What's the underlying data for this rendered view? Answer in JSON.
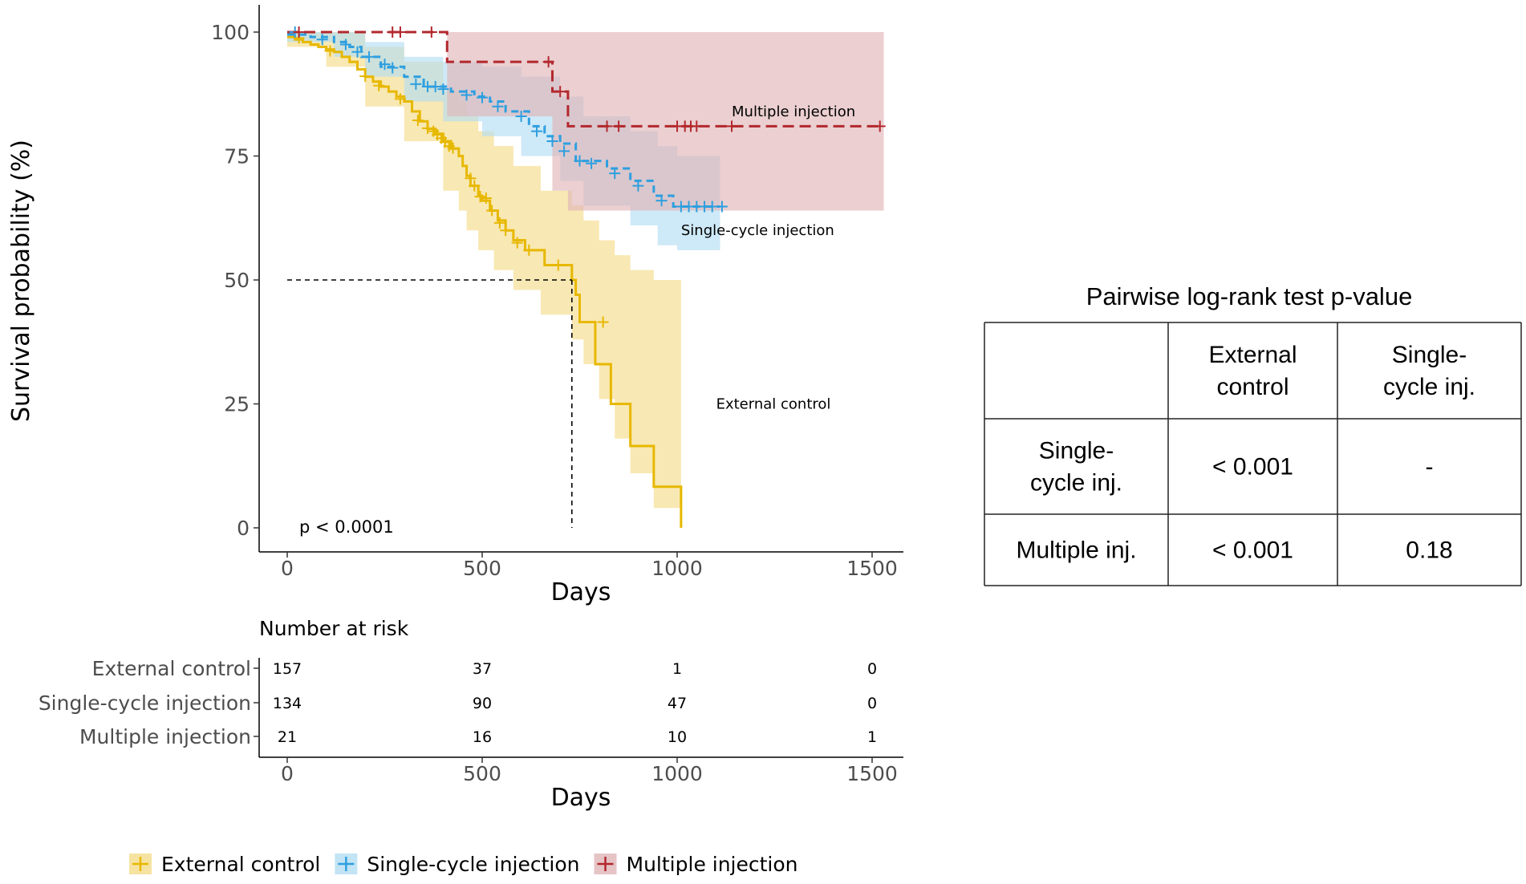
{
  "chart_data": [
    {
      "type": "line",
      "subtype": "kaplan-meier",
      "title": "",
      "xlabel": "Days",
      "ylabel": "Survival probability (%)",
      "xlim": [
        0,
        1500
      ],
      "ylim": [
        0,
        100
      ],
      "xticks": [
        0,
        500,
        1000,
        1500
      ],
      "yticks": [
        0,
        25,
        50,
        75,
        100
      ],
      "pvalue_text": "p < 0.0001",
      "median_line": {
        "x": 730,
        "y": 50
      },
      "series": [
        {
          "name": "External control",
          "color": "#E7B800",
          "band_color": "#F4DC8A",
          "label": "External control",
          "label_pos": [
            1100,
            25
          ],
          "steps": [
            [
              0,
              99
            ],
            [
              20,
              98.5
            ],
            [
              40,
              98
            ],
            [
              60,
              97.5
            ],
            [
              80,
              97
            ],
            [
              100,
              96.5
            ],
            [
              120,
              96
            ],
            [
              140,
              95
            ],
            [
              160,
              94
            ],
            [
              180,
              92.5
            ],
            [
              200,
              91
            ],
            [
              220,
              90
            ],
            [
              240,
              89
            ],
            [
              260,
              88
            ],
            [
              280,
              87
            ],
            [
              300,
              86
            ],
            [
              320,
              84
            ],
            [
              340,
              82
            ],
            [
              360,
              80.5
            ],
            [
              380,
              79.5
            ],
            [
              400,
              78
            ],
            [
              420,
              76.5
            ],
            [
              440,
              75
            ],
            [
              450,
              73
            ],
            [
              460,
              71
            ],
            [
              470,
              69
            ],
            [
              490,
              67
            ],
            [
              500,
              66
            ],
            [
              520,
              64
            ],
            [
              540,
              62
            ],
            [
              560,
              60
            ],
            [
              580,
              58
            ],
            [
              610,
              56
            ],
            [
              660,
              53
            ],
            [
              730,
              50
            ],
            [
              740,
              47
            ],
            [
              750,
              41.5
            ],
            [
              790,
              33
            ],
            [
              830,
              25
            ],
            [
              880,
              16.5
            ],
            [
              940,
              8.3
            ],
            [
              1010,
              0
            ]
          ],
          "band": [
            [
              0,
              100,
              97
            ],
            [
              100,
              100,
              93
            ],
            [
              200,
              97,
              85
            ],
            [
              300,
              94,
              78
            ],
            [
              400,
              88,
              68
            ],
            [
              440,
              86,
              64
            ],
            [
              460,
              83,
              60
            ],
            [
              490,
              80,
              56
            ],
            [
              530,
              77,
              52
            ],
            [
              580,
              73,
              48
            ],
            [
              650,
              68,
              43
            ],
            [
              730,
              65,
              38
            ],
            [
              760,
              62,
              33
            ],
            [
              800,
              58,
              26
            ],
            [
              840,
              55,
              18
            ],
            [
              880,
              52,
              11
            ],
            [
              940,
              50,
              4
            ],
            [
              1010,
              50,
              0
            ]
          ],
          "censor": [
            [
              30,
              98.8
            ],
            [
              110,
              96.2
            ],
            [
              200,
              91.1
            ],
            [
              235,
              89.2
            ],
            [
              290,
              86.5
            ],
            [
              335,
              82.2
            ],
            [
              360,
              80.6
            ],
            [
              375,
              80
            ],
            [
              385,
              79.3
            ],
            [
              395,
              78.6
            ],
            [
              405,
              77.8
            ],
            [
              415,
              77
            ],
            [
              425,
              76.6
            ],
            [
              470,
              70.5
            ],
            [
              480,
              69
            ],
            [
              495,
              66.8
            ],
            [
              510,
              66.5
            ],
            [
              525,
              64
            ],
            [
              545,
              61.5
            ],
            [
              560,
              60
            ],
            [
              590,
              57.5
            ],
            [
              620,
              56
            ],
            [
              695,
              53
            ],
            [
              810,
              41.5
            ]
          ]
        },
        {
          "name": "Single-cycle injection",
          "color": "#2E9FDF",
          "band_color": "#B3DDF3",
          "label": "Single-cycle injection",
          "label_pos": [
            1010,
            60
          ],
          "steps": [
            [
              0,
              99.5
            ],
            [
              60,
              99
            ],
            [
              120,
              98
            ],
            [
              160,
              97
            ],
            [
              190,
              95
            ],
            [
              240,
              93
            ],
            [
              300,
              91
            ],
            [
              350,
              89
            ],
            [
              420,
              88
            ],
            [
              480,
              87
            ],
            [
              520,
              86
            ],
            [
              560,
              84
            ],
            [
              620,
              81
            ],
            [
              660,
              79
            ],
            [
              700,
              77.5
            ],
            [
              740,
              74
            ],
            [
              820,
              72.5
            ],
            [
              880,
              70
            ],
            [
              940,
              67
            ],
            [
              990,
              64.8
            ],
            [
              1110,
              64.8
            ]
          ],
          "band": [
            [
              0,
              100,
              98
            ],
            [
              120,
              100,
              95
            ],
            [
              200,
              98,
              91
            ],
            [
              300,
              95,
              86
            ],
            [
              400,
              94,
              82
            ],
            [
              500,
              93,
              79
            ],
            [
              600,
              91,
              75
            ],
            [
              700,
              87,
              70
            ],
            [
              760,
              83,
              65
            ],
            [
              880,
              80,
              61
            ],
            [
              950,
              77,
              57
            ],
            [
              1000,
              75,
              56
            ],
            [
              1110,
              75,
              56
            ]
          ],
          "censor": [
            [
              20,
              100
            ],
            [
              90,
              98.5
            ],
            [
              150,
              97.5
            ],
            [
              180,
              96
            ],
            [
              210,
              95
            ],
            [
              250,
              93.5
            ],
            [
              270,
              92.8
            ],
            [
              330,
              89.5
            ],
            [
              360,
              89
            ],
            [
              380,
              89
            ],
            [
              400,
              88.5
            ],
            [
              460,
              87.3
            ],
            [
              500,
              86.8
            ],
            [
              540,
              85
            ],
            [
              600,
              83
            ],
            [
              640,
              80
            ],
            [
              680,
              78
            ],
            [
              710,
              76
            ],
            [
              750,
              74
            ],
            [
              780,
              73.5
            ],
            [
              840,
              71.5
            ],
            [
              900,
              69
            ],
            [
              960,
              66
            ],
            [
              1010,
              64.8
            ],
            [
              1030,
              64.8
            ],
            [
              1050,
              64.8
            ],
            [
              1070,
              64.8
            ],
            [
              1090,
              64.8
            ],
            [
              1115,
              64.8
            ]
          ]
        },
        {
          "name": "Multiple injection",
          "color": "#B2282D",
          "band_color": "#E0B5B8",
          "label": "Multiple injection",
          "label_pos": [
            1140,
            84
          ],
          "steps": [
            [
              0,
              100
            ],
            [
              410,
              100
            ],
            [
              410,
              94
            ],
            [
              680,
              94
            ],
            [
              680,
              88
            ],
            [
              720,
              88
            ],
            [
              720,
              81
            ],
            [
              1530,
              81
            ]
          ],
          "band": [
            [
              0,
              100,
              100
            ],
            [
              410,
              100,
              83
            ],
            [
              680,
              100,
              68
            ],
            [
              720,
              100,
              64
            ],
            [
              1530,
              100,
              64
            ]
          ],
          "censor": [
            [
              30,
              100
            ],
            [
              270,
              100
            ],
            [
              290,
              100
            ],
            [
              370,
              100
            ],
            [
              670,
              94
            ],
            [
              700,
              88
            ],
            [
              820,
              81
            ],
            [
              850,
              81
            ],
            [
              1000,
              81
            ],
            [
              1020,
              81
            ],
            [
              1035,
              81
            ],
            [
              1050,
              81
            ],
            [
              1140,
              81
            ],
            [
              1520,
              81
            ]
          ]
        }
      ]
    },
    {
      "type": "table",
      "title": "Number at risk",
      "xlabel": "Days",
      "xticks": [
        0,
        500,
        1000,
        1500
      ],
      "rows": [
        {
          "name": "External control",
          "values": [
            "157",
            "37",
            "1",
            "0"
          ]
        },
        {
          "name": "Single-cycle injection",
          "values": [
            "134",
            "90",
            "47",
            "0"
          ]
        },
        {
          "name": "Multiple injection",
          "values": [
            "21",
            "16",
            "10",
            "1"
          ]
        }
      ]
    },
    {
      "type": "table",
      "title": "Pairwise log-rank test p-value",
      "headers": [
        "",
        "External control",
        "Single-cycle inj."
      ],
      "rows": [
        [
          "Single-cycle inj.",
          "< 0.001",
          "-"
        ],
        [
          "Multiple inj.",
          "< 0.001",
          "0.18"
        ]
      ]
    }
  ],
  "legend": {
    "position": "bottom",
    "items": [
      "External control",
      "Single-cycle injection",
      "Multiple injection"
    ]
  }
}
